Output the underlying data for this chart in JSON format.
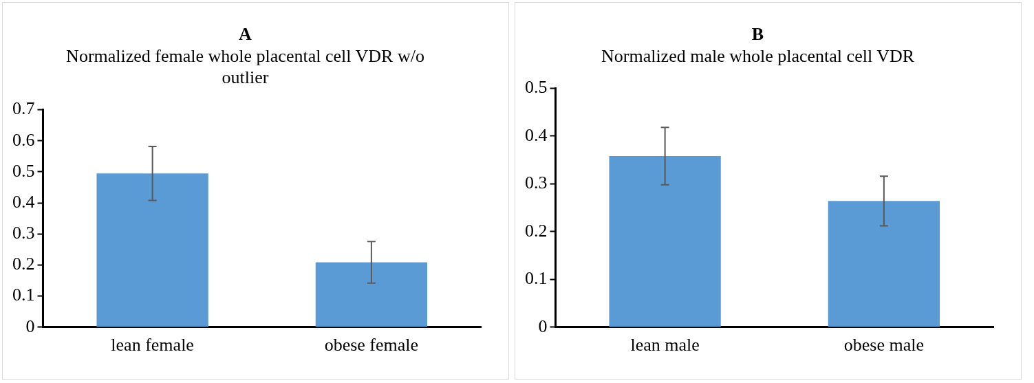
{
  "chart_data": [
    {
      "type": "bar",
      "title": "A",
      "subtitle": "Normalized female whole placental cell VDR w/o outlier",
      "categories": [
        "lean female",
        "obese female"
      ],
      "values": [
        0.495,
        0.209
      ],
      "errors": [
        0.087,
        0.067
      ],
      "color": "#5b9bd5",
      "ylim": [
        0,
        0.7
      ],
      "yticks": [
        0,
        0.1,
        0.2,
        0.3,
        0.4,
        0.5,
        0.6,
        0.7
      ],
      "grid": false,
      "legend": false
    },
    {
      "type": "bar",
      "title": "B",
      "subtitle": "Normalized male whole placental cell VDR",
      "categories": [
        "lean male",
        "obese male"
      ],
      "values": [
        0.358,
        0.264
      ],
      "errors": [
        0.06,
        0.052
      ],
      "color": "#5b9bd5",
      "ylim": [
        0,
        0.5
      ],
      "yticks": [
        0,
        0.1,
        0.2,
        0.3,
        0.4,
        0.5
      ],
      "grid": false,
      "legend": false
    }
  ]
}
